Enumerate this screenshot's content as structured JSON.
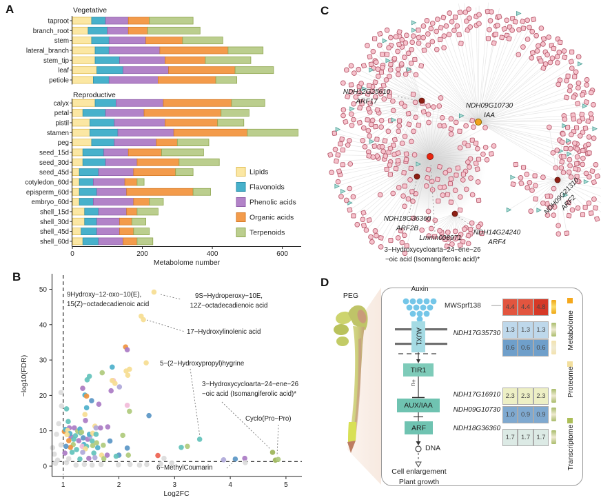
{
  "figure": {
    "panel_labels": {
      "a": "A",
      "b": "B",
      "c": "C",
      "d": "D"
    }
  },
  "chart_data": [
    {
      "type": "bar",
      "orientation": "horizontal-stacked",
      "group_titles": [
        "Vegetative",
        "Reproductive"
      ],
      "xlabel": "Metabolome number",
      "xlim": [
        0,
        650
      ],
      "xticks": [
        0,
        200,
        400,
        600
      ],
      "legend": [
        "Lipids",
        "Flavonoids",
        "Phenolic acids",
        "Organic acids",
        "Terpenoids"
      ],
      "series_colors": [
        {
          "name": "Lipids",
          "fill": "#FBE7A3",
          "stroke": "#E0BE55"
        },
        {
          "name": "Flavonoids",
          "fill": "#47B1CB",
          "stroke": "#2B8FAB"
        },
        {
          "name": "Phenolic acids",
          "fill": "#B283C8",
          "stroke": "#9261AB"
        },
        {
          "name": "Organic acids",
          "fill": "#F39B4B",
          "stroke": "#D67B27"
        },
        {
          "name": "Terpenoids",
          "fill": "#BBCE8E",
          "stroke": "#8FA64F"
        }
      ],
      "vegetative_rows": [
        {
          "label": "taproot",
          "values": [
            55,
            40,
            65,
            60,
            125
          ]
        },
        {
          "label": "branch_root",
          "values": [
            45,
            55,
            60,
            55,
            150
          ]
        },
        {
          "label": "stem",
          "values": [
            55,
            50,
            105,
            105,
            115
          ]
        },
        {
          "label": "lateral_branch",
          "values": [
            65,
            40,
            145,
            195,
            100
          ]
        },
        {
          "label": "stem_tip",
          "values": [
            65,
            70,
            130,
            115,
            130
          ]
        },
        {
          "label": "leaf",
          "values": [
            70,
            75,
            130,
            190,
            110
          ]
        },
        {
          "label": "petiole",
          "values": [
            60,
            45,
            140,
            165,
            60
          ]
        }
      ],
      "reproductive_rows": [
        {
          "label": "calyx",
          "values": [
            65,
            60,
            135,
            195,
            95
          ]
        },
        {
          "label": "petal",
          "values": [
            30,
            65,
            110,
            220,
            80
          ]
        },
        {
          "label": "pistil",
          "values": [
            50,
            70,
            145,
            150,
            75
          ]
        },
        {
          "label": "stamen",
          "values": [
            50,
            80,
            160,
            210,
            145
          ]
        },
        {
          "label": "peg",
          "values": [
            55,
            65,
            120,
            60,
            90
          ]
        },
        {
          "label": "seed_15d",
          "values": [
            30,
            60,
            70,
            95,
            120
          ]
        },
        {
          "label": "seed_30d",
          "values": [
            30,
            65,
            90,
            120,
            115
          ]
        },
        {
          "label": "seed_45d",
          "values": [
            20,
            55,
            100,
            120,
            50
          ]
        },
        {
          "label": "cotyledon_60d",
          "values": [
            20,
            40,
            90,
            35,
            20
          ]
        },
        {
          "label": "episperm_60d",
          "values": [
            20,
            50,
            85,
            190,
            50
          ]
        },
        {
          "label": "embryo_60d",
          "values": [
            20,
            40,
            115,
            45,
            40
          ]
        },
        {
          "label": "shell_15d",
          "values": [
            35,
            40,
            80,
            30,
            60
          ]
        },
        {
          "label": "shell_30d",
          "values": [
            35,
            35,
            65,
            35,
            40
          ]
        },
        {
          "label": "shell_45d",
          "values": [
            25,
            45,
            65,
            40,
            45
          ]
        },
        {
          "label": "shell_60d",
          "values": [
            30,
            45,
            70,
            40,
            45
          ]
        }
      ]
    },
    {
      "type": "scatter",
      "xlabel": "Log2FC",
      "ylabel": "−log10(FDR)",
      "xticks": [
        1,
        2,
        3,
        4,
        5
      ],
      "yticks": [
        0,
        10,
        20,
        30,
        40,
        50
      ],
      "threshold_x": 1,
      "threshold_y": 1.3,
      "palette": {
        "yellow": "#F6DE92",
        "cream": "#FAEDC9",
        "teal": "#63C3BB",
        "cyan": "#4FB0CB",
        "green": "#AFCA7D",
        "olive": "#9DB559",
        "purple": "#AB7CC5",
        "lavender": "#AFA9D9",
        "pink": "#F2BBD9",
        "orange": "#F0953F",
        "blue": "#5B97C6",
        "red": "#EE6352",
        "gray": "#DCDCDC"
      },
      "points": [
        [
          2.63,
          49.2,
          "yellow"
        ],
        [
          2.4,
          42.4,
          "yellow"
        ],
        [
          2.44,
          41.4,
          "yellow"
        ],
        [
          2.12,
          33.7,
          "orange"
        ],
        [
          2.15,
          32.9,
          "purple"
        ],
        [
          2.49,
          29.2,
          "yellow"
        ],
        [
          1.88,
          28.0,
          "cyan"
        ],
        [
          1.7,
          26.4,
          "green"
        ],
        [
          1.47,
          25.4,
          "teal"
        ],
        [
          2.13,
          26.9,
          "yellow"
        ],
        [
          2.19,
          27.4,
          "yellow"
        ],
        [
          2.16,
          25.7,
          "yellow"
        ],
        [
          1.9,
          24.2,
          "pink"
        ],
        [
          1.43,
          24.4,
          "teal"
        ],
        [
          1.88,
          24.2,
          "yellow"
        ],
        [
          1.93,
          23.4,
          "yellow"
        ],
        [
          2.01,
          22.4,
          "lavender"
        ],
        [
          1.35,
          22.1,
          "cream"
        ],
        [
          1.35,
          22.0,
          "purple"
        ],
        [
          1.86,
          21.3,
          "purple"
        ],
        [
          0.96,
          20.8,
          "gray"
        ],
        [
          1.39,
          20.1,
          "cyan"
        ],
        [
          1.42,
          19.8,
          "orange"
        ],
        [
          1.51,
          18.5,
          "blue"
        ],
        [
          1.64,
          17.5,
          "purple"
        ],
        [
          2.15,
          17.2,
          "pink"
        ],
        [
          1.42,
          16.5,
          "cyan"
        ],
        [
          1.06,
          16.2,
          "teal"
        ],
        [
          2.19,
          15.5,
          "green"
        ],
        [
          1.39,
          14.6,
          "yellow"
        ],
        [
          2.54,
          14.3,
          "blue"
        ],
        [
          1.4,
          12.9,
          "purple"
        ],
        [
          1.09,
          12.6,
          "teal"
        ],
        [
          1.11,
          10.8,
          "purple"
        ],
        [
          1.2,
          10.8,
          "purple"
        ],
        [
          1.57,
          11.3,
          "yellow"
        ],
        [
          1.59,
          10.8,
          "lavender"
        ],
        [
          1.67,
          10.8,
          "purple"
        ],
        [
          1.8,
          11.1,
          "purple"
        ],
        [
          1.02,
          9.8,
          "orange"
        ],
        [
          1.04,
          10.4,
          "cyan"
        ],
        [
          1.08,
          10.1,
          "yellow"
        ],
        [
          1.14,
          8.3,
          "purple"
        ],
        [
          1.22,
          8.6,
          "teal"
        ],
        [
          1.26,
          9.9,
          "green"
        ],
        [
          1.3,
          10.5,
          "cyan"
        ],
        [
          1.36,
          8.0,
          "blue"
        ],
        [
          1.44,
          7.6,
          "purple"
        ],
        [
          1.48,
          8.4,
          "lavender"
        ],
        [
          1.52,
          7.1,
          "teal"
        ],
        [
          1.6,
          6.6,
          "green"
        ],
        [
          1.12,
          9.2,
          "cyan"
        ],
        [
          1.07,
          8.9,
          "yellow"
        ],
        [
          1.1,
          7.2,
          "orange"
        ],
        [
          1.31,
          9.4,
          "teal"
        ],
        [
          1.33,
          9.6,
          "green"
        ],
        [
          1.47,
          9.0,
          "cyan"
        ],
        [
          1.53,
          9.3,
          "yellow"
        ],
        [
          1.59,
          9.0,
          "teal"
        ],
        [
          2.07,
          8.7,
          "green"
        ],
        [
          1.84,
          7.1,
          "blue"
        ],
        [
          1.19,
          7.6,
          "teal"
        ],
        [
          1.28,
          7.2,
          "purple"
        ],
        [
          1.18,
          6.1,
          "green"
        ],
        [
          1.37,
          6.1,
          "cyan"
        ],
        [
          1.34,
          5.6,
          "pink"
        ],
        [
          1.42,
          5.6,
          "teal"
        ],
        [
          1.53,
          5.8,
          "green"
        ],
        [
          1.13,
          5.3,
          "orange"
        ],
        [
          1.24,
          4.7,
          "teal"
        ],
        [
          1.4,
          4.9,
          "yellow"
        ],
        [
          1.62,
          5.2,
          "cyan"
        ],
        [
          1.72,
          5.9,
          "green"
        ],
        [
          2.15,
          5.1,
          "blue"
        ],
        [
          1.05,
          5.6,
          "blue"
        ],
        [
          1.55,
          3.7,
          "teal"
        ],
        [
          1.69,
          3.1,
          "yellow"
        ],
        [
          2.17,
          3.1,
          "green"
        ],
        [
          2.0,
          3.1,
          "blue"
        ],
        [
          1.95,
          2.8,
          "teal"
        ],
        [
          2.7,
          3.0,
          "red"
        ],
        [
          1.03,
          3.7,
          "purple"
        ],
        [
          1.16,
          3.9,
          "teal"
        ],
        [
          1.35,
          3.9,
          "lavender"
        ],
        [
          1.79,
          3.1,
          "purple"
        ],
        [
          1.46,
          2.2,
          "purple"
        ],
        [
          1.3,
          2.0,
          "teal"
        ],
        [
          1.57,
          2.4,
          "lavender"
        ],
        [
          1.73,
          2.1,
          "green"
        ],
        [
          3.12,
          5.3,
          "teal"
        ],
        [
          3.23,
          5.6,
          "green"
        ],
        [
          3.45,
          7.6,
          "teal"
        ],
        [
          3.88,
          1.8,
          "lavender"
        ],
        [
          4.09,
          2.0,
          "blue"
        ],
        [
          4.26,
          2.2,
          "purple"
        ],
        [
          4.76,
          3.9,
          "olive"
        ],
        [
          4.81,
          1.7,
          "olive"
        ],
        [
          4.86,
          1.9,
          "green"
        ],
        [
          0.96,
          6.0,
          "gray"
        ],
        [
          0.81,
          5.2,
          "gray"
        ],
        [
          0.84,
          3.4,
          "gray"
        ],
        [
          0.9,
          1.7,
          "gray"
        ],
        [
          1.1,
          2.1,
          "gray"
        ],
        [
          0.88,
          9.0,
          "gray"
        ],
        [
          0.92,
          12.0,
          "gray"
        ],
        [
          0.97,
          17.0,
          "gray"
        ],
        [
          1.23,
          0.3,
          "gray"
        ],
        [
          1.38,
          0.5,
          "gray"
        ],
        [
          1.52,
          0.3,
          "gray"
        ],
        [
          1.68,
          0.5,
          "gray"
        ],
        [
          1.99,
          0.4,
          "gray"
        ],
        [
          2.2,
          0.5,
          "gray"
        ],
        [
          2.37,
          0.3,
          "gray"
        ],
        [
          2.5,
          0.5,
          "gray"
        ],
        [
          2.81,
          2.2,
          "gray"
        ],
        [
          2.75,
          0.6,
          "gray"
        ],
        [
          2.95,
          0.9,
          "gray"
        ],
        [
          4.27,
          1.0,
          "gray"
        ],
        [
          0.86,
          0.8,
          "gray"
        ],
        [
          1.06,
          1.0,
          "gray"
        ]
      ],
      "annotations": {
        "a1l1": "9Hydroxy−12-oxo−10(E),",
        "a1l2": "15(Z)−octadecadienoic acid",
        "a2l1": "9S−Hydroperoxy−10E,",
        "a2l2": "12Z−octadecadienoic acid",
        "a3": "17−Hydroxylinolenic acid",
        "a4": "5−(2−Hydroxypropyl)hygrine",
        "a5l1": "3−Hydroxycycloarta−24−ene−26",
        "a5l2": "−oic acid (Isomangiferolic acid)*",
        "a6": "Cyclo(Pro−Pro)",
        "a7": "6−MethylCoumarin"
      }
    }
  ],
  "network": {
    "labels": {
      "arf17_gene": "NDH12G25610",
      "arf17": "ARF17",
      "iaa_gene": "NDH09G10730",
      "iaa": "IAA",
      "arf2_gene": "NDH09G21310",
      "arf2": "ARF2",
      "arf2b_gene": "NDH18G36360",
      "arf2b": "ARF2B",
      "arf4_gene": "NDH14G24240",
      "arf4": "ARF4",
      "metabolite_id": "Lmmn008971",
      "metabolite_l1": "3−Hydroxycycloarta−24−ene−26",
      "metabolite_l2": "−oic acid (Isomangiferolic acid)*"
    },
    "node_colors": {
      "gene_node_fill": "#F6C2CC",
      "gene_node_stroke": "#B85C6E",
      "triangle_fill": "#A8DCD4",
      "triangle_stroke": "#4E9E96",
      "hub_orange": "#F2A21D",
      "hub_red": "#E8250F",
      "hub_darkred": "#8E1F14",
      "edge": "#CFCFCF"
    }
  },
  "panel_d": {
    "peg_label": "PEG",
    "auxin_label": "Auxin",
    "mwsprf_label": "MWSprf138",
    "aux1": "AUX1",
    "tir1": "TIR1",
    "auxiaa": "AUX/IAA",
    "arf": "ARF",
    "ub": "+u",
    "dna": "DNA",
    "outcome1": "Cell enlargement",
    "outcome2": "Plant growth",
    "genes": {
      "g35730": "NDH17G35730",
      "g16910": "NDH17G16910",
      "g10730": "NDH09G10730",
      "g36360": "NDH18G36360"
    },
    "heatmap_rows": [
      {
        "values": [
          "4.4",
          "4.4",
          "4.8"
        ],
        "colors": [
          "#E2553F",
          "#E2553F",
          "#D63927"
        ],
        "strip": "gold"
      },
      {
        "values": [
          "1.3",
          "1.3",
          "1.3"
        ],
        "colors": [
          "#BED8EB",
          "#BED8EB",
          "#BED8EB"
        ],
        "strip": "olive"
      },
      {
        "values": [
          "0.6",
          "0.6",
          "0.6"
        ],
        "colors": [
          "#6F9FCA",
          "#6F9FCA",
          "#6F9FCA"
        ],
        "strip": "paleyellow"
      },
      {
        "values": [
          "2.3",
          "2.3",
          "2.3"
        ],
        "colors": [
          "#EDEFC5",
          "#EDEFC5",
          "#EDEFC5"
        ],
        "strip": "olive"
      },
      {
        "values": [
          "1.0",
          "0.9",
          "0.9"
        ],
        "colors": [
          "#7FA9D0",
          "#7FA9D0",
          "#7FA9D0"
        ],
        "strip": "olive"
      },
      {
        "values": [
          "1.7",
          "1.7",
          "1.7"
        ],
        "colors": [
          "#DCEAE5",
          "#DCEAE5",
          "#DCEAE5"
        ],
        "strip": "olive"
      }
    ],
    "strip_colors": {
      "gold": "#EFA716",
      "olive": "#A9BC6B",
      "paleyellow": "#F3E2AE"
    },
    "omics": [
      {
        "label": "Metabolome",
        "color": "#F5A81C"
      },
      {
        "label": "Proteome",
        "color": "#F3DF9E"
      },
      {
        "label": "Transcriptome",
        "color": "#ACBE58"
      }
    ]
  }
}
